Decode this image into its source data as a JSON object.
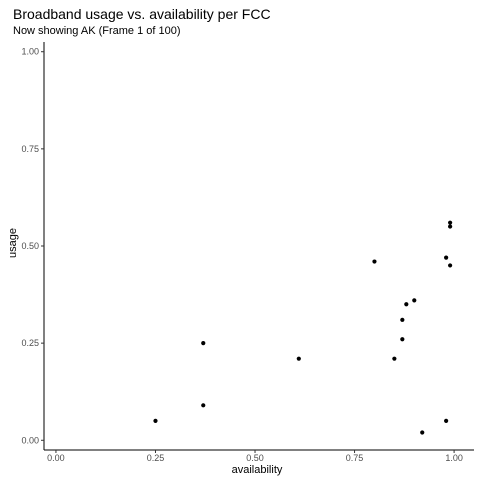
{
  "chart_data": {
    "type": "scatter",
    "title": "Broadband usage vs. availability per FCC",
    "subtitle": "Now showing AK (Frame 1 of 100)",
    "xlabel": "availability",
    "ylabel": "usage",
    "xlim": [
      -0.03,
      1.05
    ],
    "ylim": [
      -0.025,
      1.025
    ],
    "xticks": [
      0.0,
      0.25,
      0.5,
      0.75,
      1.0
    ],
    "xtick_labels": [
      "0.00",
      "0.25",
      "0.50",
      "0.75",
      "1.00"
    ],
    "yticks": [
      0.0,
      0.25,
      0.5,
      0.75,
      1.0
    ],
    "ytick_labels": [
      "0.00",
      "0.25",
      "0.50",
      "0.75",
      "1.00"
    ],
    "grid": false,
    "points": [
      {
        "x": 0.25,
        "y": 0.05
      },
      {
        "x": 0.37,
        "y": 0.25
      },
      {
        "x": 0.37,
        "y": 0.09
      },
      {
        "x": 0.61,
        "y": 0.21
      },
      {
        "x": 0.8,
        "y": 0.46
      },
      {
        "x": 0.85,
        "y": 0.21
      },
      {
        "x": 0.87,
        "y": 0.26
      },
      {
        "x": 0.87,
        "y": 0.31
      },
      {
        "x": 0.88,
        "y": 0.35
      },
      {
        "x": 0.9,
        "y": 0.36
      },
      {
        "x": 0.92,
        "y": 0.02
      },
      {
        "x": 0.98,
        "y": 0.47
      },
      {
        "x": 0.98,
        "y": 0.05
      },
      {
        "x": 0.99,
        "y": 0.55
      },
      {
        "x": 0.99,
        "y": 0.56
      },
      {
        "x": 0.99,
        "y": 0.45
      }
    ]
  }
}
